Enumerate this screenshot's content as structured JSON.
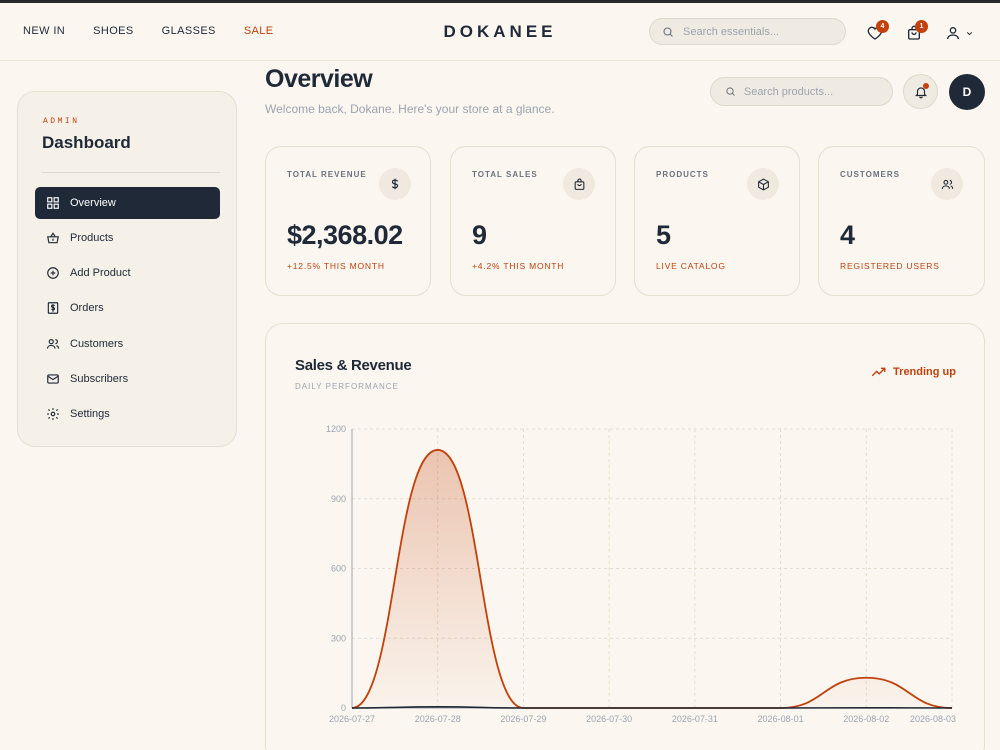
{
  "topnav": {
    "links": [
      "NEW IN",
      "SHOES",
      "GLASSES",
      "SALE"
    ],
    "brand": "DOKANEE",
    "search_placeholder": "Search essentials...",
    "wishlist_count": "4",
    "cart_count": "1"
  },
  "sidebar": {
    "section_label": "ADMIN",
    "title": "Dashboard",
    "items": [
      {
        "label": "Overview",
        "icon": "grid-icon"
      },
      {
        "label": "Products",
        "icon": "basket-icon"
      },
      {
        "label": "Add Product",
        "icon": "plus-circle-icon"
      },
      {
        "label": "Orders",
        "icon": "receipt-icon"
      },
      {
        "label": "Customers",
        "icon": "users-icon"
      },
      {
        "label": "Subscribers",
        "icon": "mail-icon"
      },
      {
        "label": "Settings",
        "icon": "gear-icon"
      }
    ]
  },
  "header": {
    "title": "Overview",
    "subtitle": "Welcome back, Dokane. Here's your store at a glance.",
    "search_placeholder": "Search products...",
    "avatar_initial": "D"
  },
  "stats": [
    {
      "label": "TOTAL REVENUE",
      "value": "$2,368.02",
      "note": "+12.5% THIS MONTH",
      "icon": "dollar-icon"
    },
    {
      "label": "TOTAL SALES",
      "value": "9",
      "note": "+4.2% THIS MONTH",
      "icon": "bag-icon"
    },
    {
      "label": "PRODUCTS",
      "value": "5",
      "note": "LIVE CATALOG",
      "icon": "box-icon"
    },
    {
      "label": "CUSTOMERS",
      "value": "4",
      "note": "REGISTERED USERS",
      "icon": "users-icon"
    }
  ],
  "chart_panel": {
    "title": "Sales & Revenue",
    "subtitle": "DAILY PERFORMANCE",
    "trend_label": "Trending up"
  },
  "colors": {
    "accent": "#c2410c",
    "dark": "#1f2937",
    "background": "#fbf7f0"
  },
  "chart_data": {
    "type": "area",
    "x": [
      "2026-07-27",
      "2026-07-28",
      "2026-07-29",
      "2026-07-30",
      "2026-07-31",
      "2026-08-01",
      "2026-08-02",
      "2026-08-03"
    ],
    "series": [
      {
        "color": "#c2410c",
        "values": [
          0,
          1110,
          0,
          0,
          0,
          0,
          130,
          0
        ]
      },
      {
        "color": "#1f2937",
        "values": [
          0,
          5,
          0,
          0,
          0,
          0,
          1,
          0
        ]
      }
    ],
    "yticks": [
      0,
      300,
      600,
      900,
      1200
    ],
    "ylim": [
      0,
      1200
    ],
    "grid": true
  }
}
